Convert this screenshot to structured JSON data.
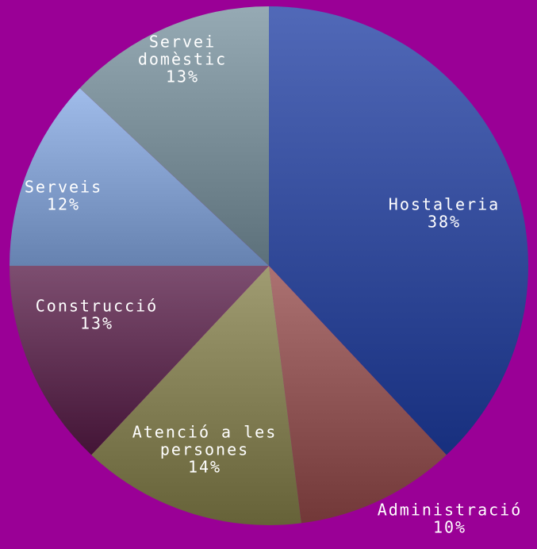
{
  "chart_data": {
    "type": "pie",
    "title": "",
    "legend": "none",
    "slices": [
      {
        "label_lines": [
          "Hostaleria"
        ],
        "pct_label": "38%",
        "value": 38,
        "color": "#3f57a6"
      },
      {
        "label_lines": [
          "Administració"
        ],
        "pct_label": "10%",
        "value": 10,
        "color": "#9a6060"
      },
      {
        "label_lines": [
          "Atenció a les",
          "persones"
        ],
        "pct_label": "14%",
        "value": 14,
        "color": "#8e8a60"
      },
      {
        "label_lines": [
          "Construcció"
        ],
        "pct_label": "13%",
        "value": 13,
        "color": "#6b3c5e"
      },
      {
        "label_lines": [
          "Serveis"
        ],
        "pct_label": "12%",
        "value": 12,
        "color": "#8eaad8"
      },
      {
        "label_lines": [
          "Servei",
          "domèstic"
        ],
        "pct_label": "13%",
        "value": 13,
        "color": "#8498a2"
      }
    ]
  }
}
